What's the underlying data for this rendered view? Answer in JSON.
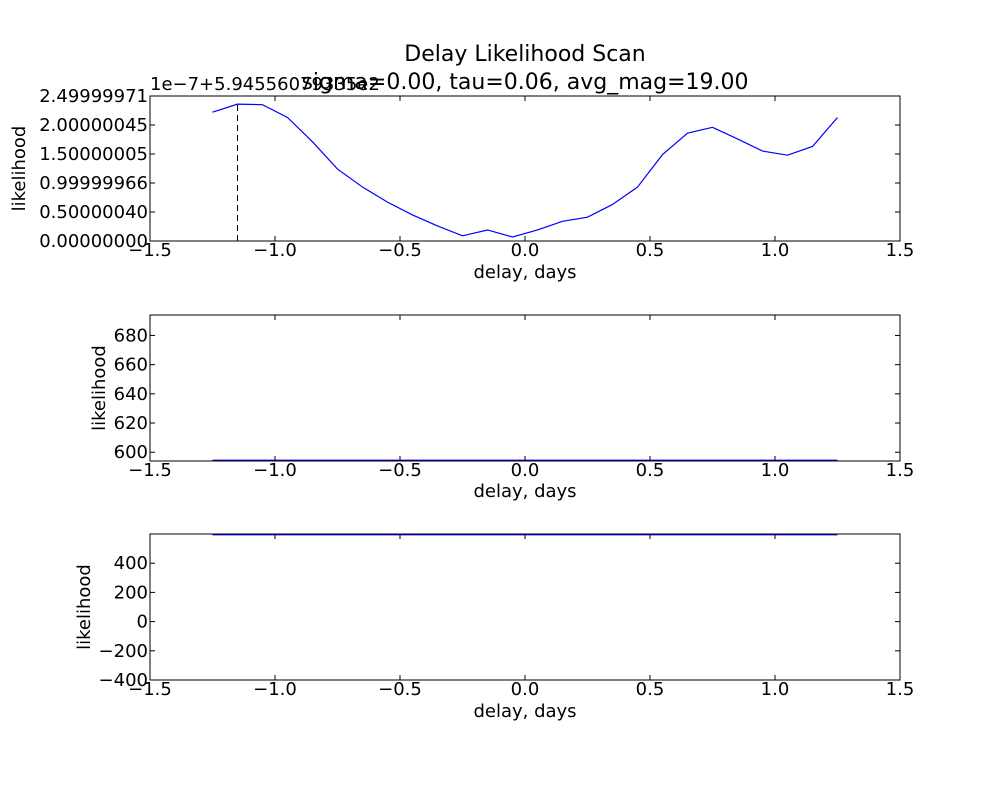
{
  "chart_data": [
    {
      "type": "line",
      "title": "Delay Likelihood Scan",
      "subtitle": "sigma=0.00, tau=0.06, avg_mag=19.00",
      "offset_text": "1e−7+5.94556079335e2",
      "xlabel": "delay, days",
      "ylabel": "likelihood",
      "xlim": [
        -1.5,
        1.5
      ],
      "ylim": [
        0,
        2.5
      ],
      "x_ticks": [
        "−1.5",
        "−1.0",
        "−0.5",
        "0.0",
        "0.5",
        "1.0",
        "1.5"
      ],
      "x_tick_values": [
        -1.5,
        -1.0,
        -0.5,
        0.0,
        0.5,
        1.0,
        1.5
      ],
      "y_ticks": [
        "0.00000000",
        "0.50000040",
        "0.99999966",
        "1.50000005",
        "2.00000045",
        "2.49999971"
      ],
      "y_tick_values": [
        0,
        0.5,
        1.0,
        1.5,
        2.0,
        2.5
      ],
      "marker_x": -1.15,
      "line_color": "#0000ff",
      "series": [
        {
          "x": [
            -1.25,
            -1.15,
            -1.05,
            -0.95,
            -0.85,
            -0.75,
            -0.65,
            -0.55,
            -0.45,
            -0.35,
            -0.25,
            -0.15,
            -0.05,
            0.05,
            0.15,
            0.25,
            0.35,
            0.45,
            0.55,
            0.65,
            0.75,
            0.85,
            0.95,
            1.05,
            1.15,
            1.25
          ],
          "values": [
            2.22,
            2.36,
            2.35,
            2.13,
            1.71,
            1.24,
            0.93,
            0.67,
            0.45,
            0.26,
            0.09,
            0.19,
            0.07,
            0.19,
            0.34,
            0.41,
            0.63,
            0.93,
            1.49,
            1.86,
            1.96,
            1.76,
            1.55,
            1.48,
            1.63,
            2.13
          ]
        }
      ]
    },
    {
      "type": "line",
      "xlabel": "delay, days",
      "ylabel": "likelihood",
      "xlim": [
        -1.5,
        1.5
      ],
      "ylim": [
        594,
        694
      ],
      "x_ticks": [
        "−1.5",
        "−1.0",
        "−0.5",
        "0.0",
        "0.5",
        "1.0",
        "1.5"
      ],
      "x_tick_values": [
        -1.5,
        -1.0,
        -0.5,
        0.0,
        0.5,
        1.0,
        1.5
      ],
      "y_ticks": [
        "600",
        "620",
        "640",
        "660",
        "680"
      ],
      "y_tick_values": [
        600,
        620,
        640,
        660,
        680
      ],
      "line_color": "#0000ff",
      "series": [
        {
          "x": [
            -1.25,
            1.25
          ],
          "values": [
            594.55,
            594.55
          ]
        }
      ]
    },
    {
      "type": "line",
      "xlabel": "delay, days",
      "ylabel": "likelihood",
      "xlim": [
        -1.5,
        1.5
      ],
      "ylim": [
        -400,
        600
      ],
      "x_ticks": [
        "−1.5",
        "−1.0",
        "−0.5",
        "0.0",
        "0.5",
        "1.0",
        "1.5"
      ],
      "x_tick_values": [
        -1.5,
        -1.0,
        -0.5,
        0.0,
        0.5,
        1.0,
        1.5
      ],
      "y_ticks": [
        "−400",
        "−200",
        "0",
        "200",
        "400"
      ],
      "y_tick_values": [
        -400,
        -200,
        0,
        200,
        400
      ],
      "line_color": "#0000ff",
      "series": [
        {
          "x": [
            -1.25,
            1.25
          ],
          "values": [
            594.55,
            594.55
          ]
        }
      ]
    }
  ]
}
